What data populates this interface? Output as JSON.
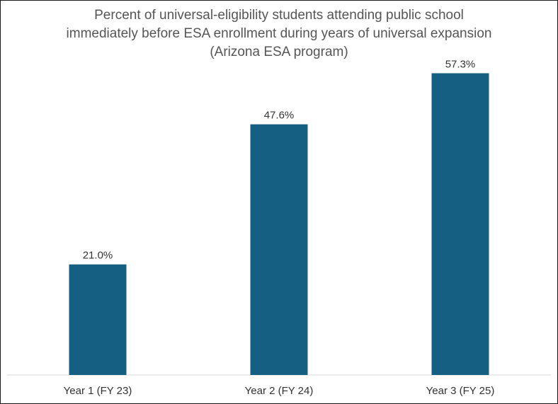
{
  "chart_data": {
    "type": "bar",
    "title": [
      "Percent of universal-eligibility students attending public school",
      "immediately before ESA enrollment during years of universal expansion",
      "(Arizona ESA program)"
    ],
    "categories": [
      "Year 1 (FY 23)",
      "Year 2 (FY 24)",
      "Year 3 (FY 25)"
    ],
    "values": [
      21.0,
      47.6,
      57.3
    ],
    "value_labels": [
      "21.0%",
      "47.6%",
      "57.3%"
    ],
    "xlabel": "",
    "ylabel": "",
    "ylim": [
      0,
      70
    ],
    "grid": false,
    "bar_color": "#155f82"
  }
}
